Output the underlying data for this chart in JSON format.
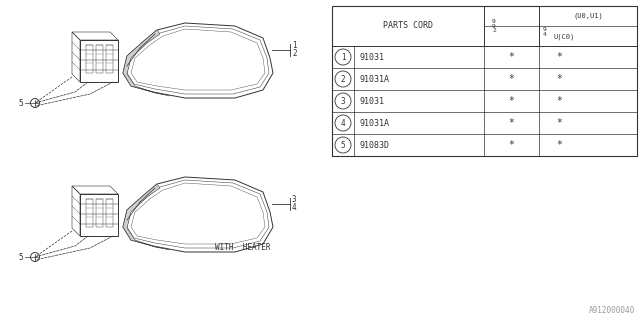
{
  "bg_color": "#ffffff",
  "line_color": "#333333",
  "text_color": "#333333",
  "watermark": "A912000040",
  "with_heater_label": "WITH  HEATER",
  "table": {
    "header_col1": "PARTS CORD",
    "rows": [
      {
        "num": "1",
        "part": "91031",
        "c2": "*",
        "c3": "*"
      },
      {
        "num": "2",
        "part": "91031A",
        "c2": "*",
        "c3": "*"
      },
      {
        "num": "3",
        "part": "91031",
        "c2": "*",
        "c3": "*"
      },
      {
        "num": "4",
        "part": "91031A",
        "c2": "*",
        "c3": "*"
      },
      {
        "num": "5",
        "part": "91083D",
        "c2": "*",
        "c3": "*"
      }
    ]
  }
}
